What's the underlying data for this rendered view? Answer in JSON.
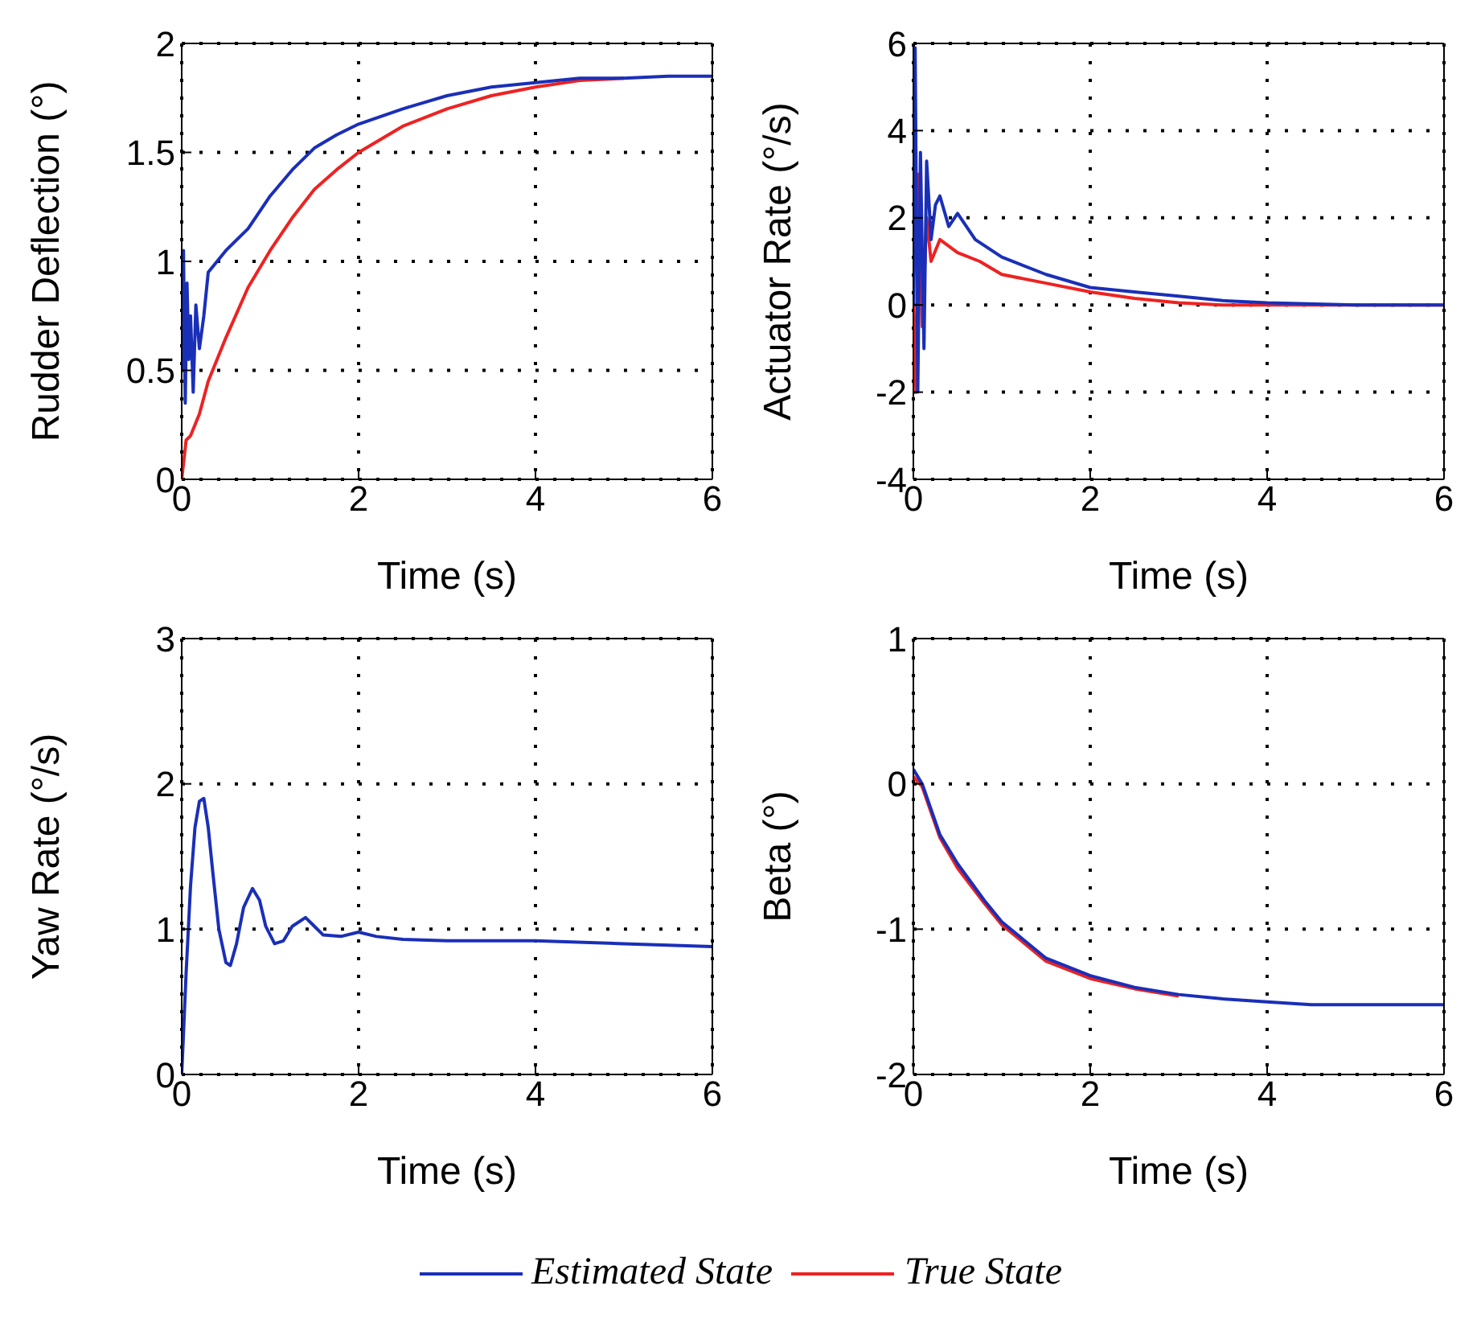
{
  "chart_data": [
    {
      "type": "line",
      "xlabel": "Time (s)",
      "ylabel": "Rudder Deflection (°)",
      "xlim": [
        0,
        6
      ],
      "xticks": [
        0,
        2,
        4,
        6
      ],
      "ylim": [
        0,
        2
      ],
      "yticks": [
        0,
        0.5,
        1,
        1.5,
        2
      ],
      "grid": true,
      "legend": "bottom",
      "line_style": "solid",
      "marker": "none",
      "series": [
        {
          "name": "True State",
          "color": "#ee2222",
          "x": [
            0,
            0.05,
            0.1,
            0.2,
            0.3,
            0.5,
            0.75,
            1,
            1.25,
            1.5,
            1.75,
            2,
            2.5,
            3,
            3.5,
            4,
            4.5,
            5
          ],
          "values": [
            0,
            0.18,
            0.2,
            0.3,
            0.45,
            0.65,
            0.88,
            1.05,
            1.2,
            1.33,
            1.42,
            1.5,
            1.62,
            1.7,
            1.76,
            1.8,
            1.83,
            1.84
          ]
        },
        {
          "name": "Estimated State",
          "color": "#1a2fb8",
          "x": [
            0,
            0.02,
            0.04,
            0.06,
            0.08,
            0.1,
            0.13,
            0.16,
            0.2,
            0.25,
            0.3,
            0.4,
            0.5,
            0.75,
            1,
            1.25,
            1.5,
            1.75,
            2,
            2.5,
            3,
            3.5,
            4,
            4.5,
            5,
            5.5,
            6
          ],
          "values": [
            0.5,
            1.05,
            0.35,
            0.9,
            0.55,
            0.75,
            0.4,
            0.8,
            0.6,
            0.75,
            0.95,
            1.0,
            1.05,
            1.15,
            1.3,
            1.42,
            1.52,
            1.58,
            1.63,
            1.7,
            1.76,
            1.8,
            1.82,
            1.84,
            1.84,
            1.85,
            1.85
          ]
        }
      ]
    },
    {
      "type": "line",
      "xlabel": "Time (s)",
      "ylabel": "Actuator Rate (°/s)",
      "xlim": [
        0,
        6
      ],
      "xticks": [
        0,
        2,
        4,
        6
      ],
      "ylim": [
        -4,
        6
      ],
      "yticks": [
        -4,
        -2,
        0,
        2,
        4,
        6
      ],
      "grid": true,
      "line_style": "solid",
      "marker": "none",
      "series": [
        {
          "color": "#ee2222",
          "x": [
            0,
            0.03,
            0.06,
            0.1,
            0.15,
            0.2,
            0.3,
            0.5,
            0.75,
            1,
            1.5,
            2,
            2.5,
            3,
            3.5,
            4,
            5,
            6
          ],
          "values": [
            0,
            -2,
            3,
            -0.5,
            2,
            1,
            1.5,
            1.2,
            1.0,
            0.7,
            0.5,
            0.3,
            0.15,
            0.05,
            0,
            0,
            0,
            0
          ]
        },
        {
          "color": "#1a2fb8",
          "x": [
            0,
            0.02,
            0.05,
            0.08,
            0.12,
            0.15,
            0.2,
            0.25,
            0.3,
            0.4,
            0.5,
            0.7,
            1,
            1.5,
            2,
            2.5,
            3,
            3.5,
            4,
            5,
            6
          ],
          "values": [
            0,
            5.9,
            -2,
            3.5,
            -1,
            3.3,
            1.5,
            2.3,
            2.5,
            1.8,
            2.1,
            1.5,
            1.1,
            0.7,
            0.4,
            0.3,
            0.2,
            0.1,
            0.05,
            0,
            0
          ]
        }
      ]
    },
    {
      "type": "line",
      "xlabel": "Time (s)",
      "ylabel": "Yaw Rate (°/s)",
      "xlim": [
        0,
        6
      ],
      "xticks": [
        0,
        2,
        4,
        6
      ],
      "ylim": [
        0,
        3
      ],
      "yticks": [
        0,
        1,
        2,
        3
      ],
      "grid": true,
      "line_style": "solid",
      "marker": "none",
      "series": [
        {
          "color": "#1a2fb8",
          "x": [
            0,
            0.05,
            0.1,
            0.15,
            0.2,
            0.25,
            0.3,
            0.35,
            0.42,
            0.5,
            0.55,
            0.62,
            0.7,
            0.8,
            0.88,
            0.95,
            1.05,
            1.15,
            1.25,
            1.4,
            1.5,
            1.6,
            1.8,
            2,
            2.2,
            2.5,
            3,
            4,
            5,
            6
          ],
          "values": [
            0,
            0.7,
            1.3,
            1.7,
            1.88,
            1.9,
            1.7,
            1.4,
            1.0,
            0.77,
            0.75,
            0.9,
            1.15,
            1.28,
            1.2,
            1.02,
            0.9,
            0.92,
            1.02,
            1.08,
            1.02,
            0.96,
            0.95,
            0.98,
            0.95,
            0.93,
            0.92,
            0.92,
            0.9,
            0.88
          ]
        }
      ]
    },
    {
      "type": "line",
      "xlabel": "Time (s)",
      "ylabel": "Beta (°)",
      "xlim": [
        0,
        6
      ],
      "xticks": [
        0,
        2,
        4,
        6
      ],
      "ylim": [
        -2,
        1
      ],
      "yticks": [
        -2,
        -1,
        0,
        1
      ],
      "grid": true,
      "line_style": "solid",
      "marker": "none",
      "series": [
        {
          "color": "#ee2222",
          "x": [
            0,
            0.1,
            0.3,
            0.5,
            0.8,
            1,
            1.5,
            2,
            2.5,
            3
          ],
          "values": [
            0.05,
            -0.02,
            -0.37,
            -0.58,
            -0.82,
            -0.97,
            -1.22,
            -1.34,
            -1.41,
            -1.46
          ]
        },
        {
          "color": "#1a2fb8",
          "x": [
            0,
            0.1,
            0.3,
            0.5,
            0.8,
            1,
            1.5,
            2,
            2.5,
            3,
            3.5,
            4,
            4.5,
            5,
            6
          ],
          "values": [
            0.1,
            0,
            -0.35,
            -0.55,
            -0.8,
            -0.95,
            -1.2,
            -1.32,
            -1.4,
            -1.45,
            -1.48,
            -1.5,
            -1.52,
            -1.52,
            -1.52
          ]
        }
      ]
    }
  ]
}
